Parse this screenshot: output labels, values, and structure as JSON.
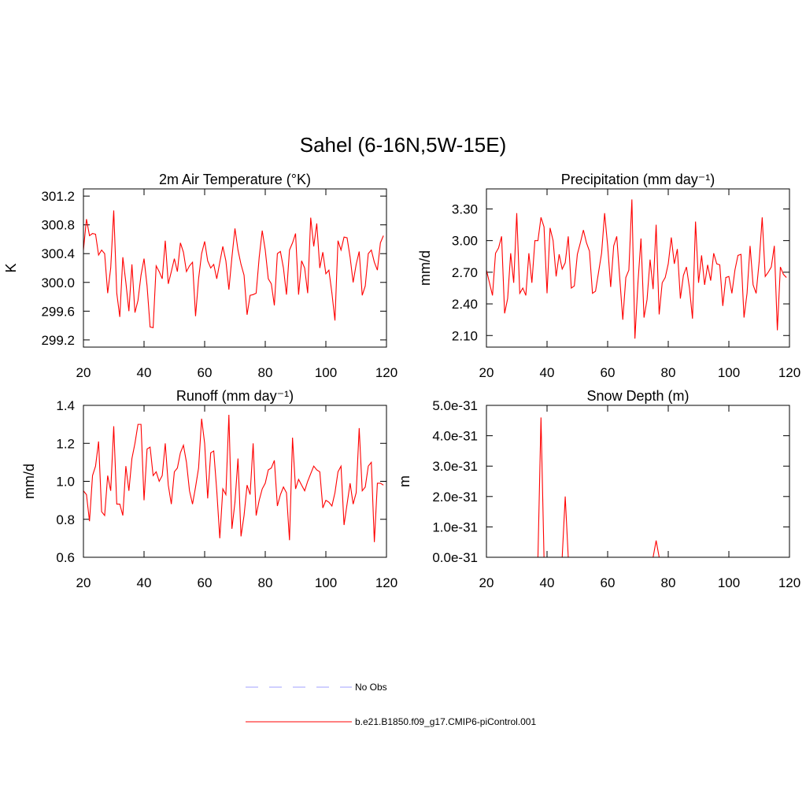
{
  "title": "Sahel (6-16N,5W-15E)",
  "legend": [
    {
      "name": "No Obs",
      "color": "#a0a0ff",
      "dash": true
    },
    {
      "name": "b.e21.B1850.f09_g17.CMIP6-piControl.001",
      "color": "#ff0000",
      "dash": false
    }
  ],
  "chart_data": [
    {
      "type": "line",
      "title": "2m Air Temperature (°K)",
      "y_label": "K",
      "xlim": [
        20,
        120
      ],
      "xticks": [
        20,
        40,
        60,
        80,
        100,
        120
      ],
      "ylim": [
        299.1,
        301.3
      ],
      "yticks": [
        299.2,
        299.6,
        {
          "value": 300.0,
          "label": "300.0"
        },
        300.4,
        300.8,
        301.2
      ],
      "x": [
        20,
        21,
        22,
        23,
        24,
        25,
        26,
        27,
        28,
        29,
        30,
        31,
        32,
        33,
        34,
        35,
        36,
        37,
        38,
        39,
        40,
        41,
        42,
        43,
        44,
        45,
        46,
        47,
        48,
        49,
        50,
        51,
        52,
        53,
        54,
        55,
        56,
        57,
        58,
        59,
        60,
        61,
        62,
        63,
        64,
        65,
        66,
        67,
        68,
        69,
        70,
        71,
        72,
        73,
        74,
        75,
        76,
        77,
        78,
        79,
        80,
        81,
        82,
        83,
        84,
        85,
        86,
        87,
        88,
        89,
        90,
        91,
        92,
        93,
        94,
        95,
        96,
        97,
        98,
        99,
        100,
        101,
        102,
        103,
        104,
        105,
        106,
        107,
        108,
        109,
        110,
        111,
        112,
        113,
        114,
        115,
        116,
        117,
        118,
        119
      ],
      "series": [
        {
          "color": "#ff0000",
          "values": [
            300.45,
            300.88,
            300.65,
            300.68,
            300.67,
            300.38,
            300.45,
            300.4,
            299.85,
            300.2,
            301.0,
            299.85,
            299.52,
            300.35,
            300.0,
            299.6,
            300.25,
            299.58,
            299.75,
            300.1,
            300.33,
            299.95,
            299.38,
            299.37,
            300.23,
            300.15,
            300.05,
            300.58,
            299.98,
            300.15,
            300.33,
            300.15,
            300.55,
            300.42,
            300.15,
            300.23,
            300.28,
            299.53,
            300.05,
            300.4,
            300.57,
            300.3,
            300.2,
            300.25,
            300.05,
            300.28,
            300.5,
            300.3,
            299.9,
            300.35,
            300.75,
            300.45,
            300.25,
            300.1,
            299.55,
            299.82,
            299.83,
            299.85,
            300.35,
            300.72,
            300.45,
            300.05,
            299.98,
            299.68,
            300.4,
            300.43,
            300.2,
            299.83,
            300.45,
            300.55,
            300.68,
            299.83,
            300.3,
            300.2,
            299.85,
            300.9,
            300.5,
            300.82,
            300.2,
            300.42,
            300.12,
            300.17,
            299.85,
            299.47,
            300.58,
            300.45,
            300.63,
            300.62,
            300.35,
            300.0,
            300.25,
            300.43,
            299.82,
            299.95,
            300.4,
            300.45,
            300.28,
            300.17,
            300.55,
            300.65
          ]
        }
      ]
    },
    {
      "type": "line",
      "title": "Precipitation (mm day⁻¹)",
      "y_label": "mm/d",
      "xlim": [
        20,
        120
      ],
      "xticks": [
        20,
        40,
        60,
        80,
        100,
        120
      ],
      "ylim": [
        1.99,
        3.49
      ],
      "yticks": [
        {
          "value": 2.1,
          "label": "2.10"
        },
        {
          "value": 2.4,
          "label": "2.40"
        },
        {
          "value": 2.7,
          "label": "2.70"
        },
        {
          "value": 3.0,
          "label": "3.00"
        },
        {
          "value": 3.3,
          "label": "3.30"
        }
      ],
      "x": [
        20,
        21,
        22,
        23,
        24,
        25,
        26,
        27,
        28,
        29,
        30,
        31,
        32,
        33,
        34,
        35,
        36,
        37,
        38,
        39,
        40,
        41,
        42,
        43,
        44,
        45,
        46,
        47,
        48,
        49,
        50,
        51,
        52,
        53,
        54,
        55,
        56,
        57,
        58,
        59,
        60,
        61,
        62,
        63,
        64,
        65,
        66,
        67,
        68,
        69,
        70,
        71,
        72,
        73,
        74,
        75,
        76,
        77,
        78,
        79,
        80,
        81,
        82,
        83,
        84,
        85,
        86,
        87,
        88,
        89,
        90,
        91,
        92,
        93,
        94,
        95,
        96,
        97,
        98,
        99,
        100,
        101,
        102,
        103,
        104,
        105,
        106,
        107,
        108,
        109,
        110,
        111,
        112,
        113,
        114,
        115,
        116,
        117,
        118,
        119
      ],
      "series": [
        {
          "color": "#ff0000",
          "values": [
            2.72,
            2.6,
            2.48,
            2.88,
            2.93,
            3.04,
            2.31,
            2.45,
            2.88,
            2.6,
            3.26,
            2.5,
            2.55,
            2.48,
            2.88,
            2.6,
            3.0,
            3.0,
            3.22,
            3.13,
            2.5,
            3.12,
            3.0,
            2.66,
            2.87,
            2.73,
            2.79,
            3.04,
            2.55,
            2.57,
            2.87,
            2.98,
            3.1,
            2.98,
            2.9,
            2.5,
            2.52,
            2.7,
            2.88,
            3.26,
            2.95,
            2.56,
            2.95,
            3.04,
            2.64,
            2.25,
            2.65,
            2.72,
            3.39,
            2.07,
            2.6,
            3.02,
            2.27,
            2.44,
            2.82,
            2.54,
            3.15,
            2.3,
            2.6,
            2.65,
            2.78,
            3.03,
            2.78,
            2.92,
            2.45,
            2.67,
            2.75,
            2.55,
            2.26,
            3.18,
            2.6,
            2.86,
            2.58,
            2.77,
            2.62,
            2.88,
            2.78,
            2.77,
            2.38,
            2.65,
            2.66,
            2.5,
            2.72,
            2.86,
            2.87,
            2.27,
            2.5,
            2.95,
            2.58,
            2.5,
            2.8,
            3.22,
            2.66,
            2.7,
            2.75,
            2.95,
            2.15,
            2.75,
            2.68,
            2.65
          ]
        }
      ]
    },
    {
      "type": "line",
      "title": "Runoff (mm day⁻¹)",
      "y_label": "mm/d",
      "xlim": [
        20,
        120
      ],
      "xticks": [
        20,
        40,
        60,
        80,
        100,
        120
      ],
      "ylim": [
        0.6,
        1.4
      ],
      "yticks": [
        0.6,
        0.8,
        {
          "value": 1.0,
          "label": "1.0"
        },
        1.2,
        1.4
      ],
      "x": [
        20,
        21,
        22,
        23,
        24,
        25,
        26,
        27,
        28,
        29,
        30,
        31,
        32,
        33,
        34,
        35,
        36,
        37,
        38,
        39,
        40,
        41,
        42,
        43,
        44,
        45,
        46,
        47,
        48,
        49,
        50,
        51,
        52,
        53,
        54,
        55,
        56,
        57,
        58,
        59,
        60,
        61,
        62,
        63,
        64,
        65,
        66,
        67,
        68,
        69,
        70,
        71,
        72,
        73,
        74,
        75,
        76,
        77,
        78,
        79,
        80,
        81,
        82,
        83,
        84,
        85,
        86,
        87,
        88,
        89,
        90,
        91,
        92,
        93,
        94,
        95,
        96,
        97,
        98,
        99,
        100,
        101,
        102,
        103,
        104,
        105,
        106,
        107,
        108,
        109,
        110,
        111,
        112,
        113,
        114,
        115,
        116,
        117,
        118,
        119
      ],
      "series": [
        {
          "color": "#ff0000",
          "values": [
            0.95,
            0.93,
            0.79,
            1.03,
            1.08,
            1.21,
            0.84,
            0.82,
            1.03,
            0.95,
            1.29,
            0.88,
            0.88,
            0.82,
            1.08,
            0.95,
            1.12,
            1.2,
            1.3,
            1.3,
            0.9,
            1.17,
            1.18,
            1.03,
            1.05,
            1.0,
            1.03,
            1.2,
            0.98,
            0.88,
            1.05,
            1.07,
            1.15,
            1.19,
            1.1,
            0.95,
            0.88,
            0.97,
            1.07,
            1.33,
            1.2,
            0.91,
            1.15,
            1.16,
            0.95,
            0.7,
            0.96,
            0.93,
            1.35,
            0.75,
            0.89,
            1.12,
            0.71,
            0.82,
            0.98,
            0.93,
            1.2,
            0.82,
            0.9,
            0.96,
            0.99,
            1.06,
            1.07,
            1.11,
            0.87,
            0.93,
            0.97,
            0.94,
            0.69,
            1.23,
            0.96,
            1.01,
            0.98,
            0.95,
            1.0,
            1.04,
            1.08,
            1.06,
            1.05,
            0.86,
            0.9,
            0.89,
            0.87,
            0.94,
            1.05,
            1.08,
            0.77,
            0.88,
            0.99,
            0.88,
            0.94,
            1.28,
            0.95,
            0.97,
            1.08,
            1.1,
            0.68,
            0.99,
            0.99,
            0.98
          ]
        }
      ]
    },
    {
      "type": "line",
      "title": "Snow Depth (m)",
      "y_label": "m",
      "xlim": [
        20,
        120
      ],
      "xticks": [
        20,
        40,
        60,
        80,
        100,
        120
      ],
      "ylim": [
        0,
        5e-31
      ],
      "yticks": [
        {
          "value": 0,
          "label": "0.0e-31"
        },
        {
          "value": 1e-31,
          "label": "1.0e-31"
        },
        {
          "value": 2e-31,
          "label": "2.0e-31"
        },
        {
          "value": 3e-31,
          "label": "3.0e-31"
        },
        {
          "value": 4e-31,
          "label": "4.0e-31"
        },
        {
          "value": 5e-31,
          "label": "5.0e-31"
        }
      ],
      "x": [
        20,
        21,
        22,
        23,
        24,
        25,
        26,
        27,
        28,
        29,
        30,
        31,
        32,
        33,
        34,
        35,
        36,
        37,
        38,
        39,
        40,
        41,
        42,
        43,
        44,
        45,
        46,
        47,
        48,
        49,
        50,
        51,
        52,
        53,
        54,
        55,
        56,
        57,
        58,
        59,
        60,
        61,
        62,
        63,
        64,
        65,
        66,
        67,
        68,
        69,
        70,
        71,
        72,
        73,
        74,
        75,
        76,
        77,
        78,
        79,
        80,
        81,
        82,
        83,
        84,
        85,
        86,
        87,
        88,
        89,
        90,
        91,
        92,
        93,
        94,
        95,
        96,
        97,
        98,
        99,
        100,
        101,
        102,
        103,
        104,
        105,
        106,
        107,
        108,
        109,
        110,
        111,
        112,
        113,
        114,
        115,
        116,
        117,
        118,
        119
      ],
      "series": [
        {
          "color": "#ff0000",
          "values": [
            0,
            0,
            0,
            0,
            0,
            0,
            0,
            0,
            0,
            0,
            0,
            0,
            0,
            0,
            0,
            0,
            0,
            0,
            4.6e-31,
            0,
            0,
            0,
            0,
            0,
            0,
            0,
            2e-31,
            0,
            0,
            0,
            0,
            0,
            0,
            0,
            0,
            0,
            0,
            0,
            0,
            0,
            0,
            0,
            0,
            0,
            0,
            0,
            0,
            0,
            0,
            0,
            0,
            0,
            0,
            0,
            0,
            0,
            5.5e-32,
            0,
            0,
            0,
            0,
            0,
            0,
            0,
            0,
            0,
            0,
            0,
            0,
            0,
            0,
            0,
            0,
            0,
            0,
            0,
            0,
            0,
            0,
            0,
            0,
            0,
            0,
            0,
            0,
            0,
            0,
            0,
            0,
            0,
            0,
            0,
            0,
            0,
            0,
            0,
            0,
            0,
            0,
            0
          ]
        }
      ]
    }
  ]
}
